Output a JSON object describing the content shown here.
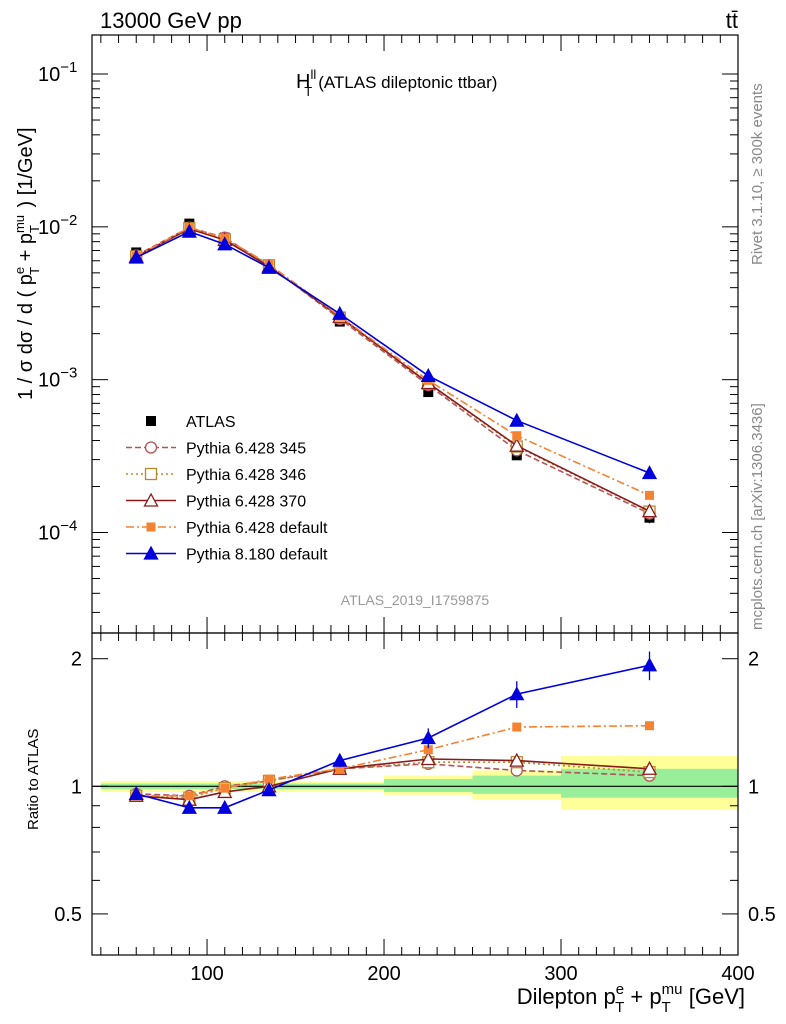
{
  "header": {
    "energy_label": "13000 GeV pp",
    "process_label": "tt̄"
  },
  "side_labels": {
    "rivet": "Rivet 3.1.10, ≥ 300k events",
    "mcplots": "mcplots.cern.ch [arXiv:1306.3436]"
  },
  "analysis_id": "ATLAS_2019_I1759875",
  "chart_data": [
    {
      "type": "line",
      "panel": "main",
      "title_main": "H",
      "title_sup": "ll",
      "title_sub": "T",
      "title_rest": "(ATLAS dileptonic ttbar)",
      "ylabel": "1 / σ  dσ / d ( p^e_T + p^mu_T ) [1/GeV]",
      "yscale": "log",
      "ylim": [
        2.2e-05,
        0.18
      ],
      "xlim": [
        35,
        400
      ],
      "yticks": [
        {
          "value": 0.1,
          "base": "10",
          "exp": "−1"
        },
        {
          "value": 0.01,
          "base": "10",
          "exp": "−2"
        },
        {
          "value": 0.001,
          "base": "10",
          "exp": "−3"
        },
        {
          "value": 0.0001,
          "base": "10",
          "exp": "−4"
        }
      ],
      "legend_position": "lower-left",
      "x": [
        60,
        90,
        110,
        135,
        175,
        225,
        275,
        350
      ],
      "series": [
        {
          "name": "ATLAS",
          "style": "data",
          "color": "#000000",
          "values": [
            0.0068,
            0.0105,
            0.0085,
            0.0055,
            0.0024,
            0.00083,
            0.00032,
            0.000125
          ],
          "errors": [
            0.0002,
            0.0003,
            0.0002,
            0.00015,
            7e-05,
            3e-05,
            2e-05,
            1e-05
          ]
        },
        {
          "name": "Pythia 6.428 345",
          "style": "dashed",
          "marker": "circle-open",
          "color": "#b5525a",
          "values": [
            0.0065,
            0.0099,
            0.0085,
            0.0056,
            0.0025,
            0.00092,
            0.000345,
            0.000133
          ]
        },
        {
          "name": "Pythia 6.428 346",
          "style": "dotted",
          "marker": "square-open",
          "color": "#b8892e",
          "values": [
            0.0064,
            0.0098,
            0.0083,
            0.0056,
            0.00255,
            0.00094,
            0.000365,
            0.000137
          ]
        },
        {
          "name": "Pythia 6.428 370",
          "style": "solid",
          "marker": "triangle-open",
          "color": "#8b1a1a",
          "values": [
            0.0064,
            0.0097,
            0.0082,
            0.0055,
            0.00258,
            0.00095,
            0.00037,
            0.000138
          ]
        },
        {
          "name": "Pythia 6.428 default",
          "style": "dashdot",
          "marker": "square-filled",
          "color": "#f58231",
          "values": [
            0.0064,
            0.0099,
            0.0084,
            0.0057,
            0.0026,
            0.00099,
            0.00043,
            0.000175
          ]
        },
        {
          "name": "Pythia 8.180 default",
          "style": "solid",
          "marker": "triangle-filled",
          "color": "#0000dd",
          "values": [
            0.0063,
            0.0093,
            0.0077,
            0.0054,
            0.0027,
            0.00106,
            0.00054,
            0.000245
          ],
          "errors": [
            0.0002,
            0.0003,
            0.0002,
            0.00015,
            0.0001,
            4e-05,
            4e-05,
            2e-05
          ]
        }
      ]
    },
    {
      "type": "line",
      "panel": "ratio",
      "ylabel": "Ratio to ATLAS",
      "xlabel_main": "Dilepton p",
      "xlabel_rest": "[GeV]",
      "yscale": "log",
      "ylim": [
        0.4,
        2.3
      ],
      "xlim": [
        35,
        400
      ],
      "xticks": [
        "100",
        "200",
        "300",
        "400"
      ],
      "yticks": [
        "0.5",
        "1",
        "2"
      ],
      "bands": [
        {
          "x0": 40,
          "x1": 80,
          "green": [
            0.985,
            1.015
          ],
          "yellow": [
            0.97,
            1.03
          ]
        },
        {
          "x0": 80,
          "x1": 100,
          "green": [
            0.985,
            1.015
          ],
          "yellow": [
            0.97,
            1.03
          ]
        },
        {
          "x0": 100,
          "x1": 120,
          "green": [
            0.985,
            1.015
          ],
          "yellow": [
            0.97,
            1.03
          ]
        },
        {
          "x0": 120,
          "x1": 150,
          "green": [
            0.985,
            1.015
          ],
          "yellow": [
            0.97,
            1.03
          ]
        },
        {
          "x0": 150,
          "x1": 200,
          "green": [
            0.985,
            1.015
          ],
          "yellow": [
            0.975,
            1.025
          ]
        },
        {
          "x0": 200,
          "x1": 250,
          "green": [
            0.97,
            1.04
          ],
          "yellow": [
            0.955,
            1.06
          ]
        },
        {
          "x0": 250,
          "x1": 300,
          "green": [
            0.96,
            1.06
          ],
          "yellow": [
            0.93,
            1.09
          ]
        },
        {
          "x0": 300,
          "x1": 400,
          "green": [
            0.94,
            1.1
          ],
          "yellow": [
            0.88,
            1.18
          ]
        }
      ],
      "x": [
        60,
        90,
        110,
        135,
        175,
        225,
        275,
        350
      ],
      "series": [
        {
          "name": "Pythia 6.428 345",
          "style": "dashed",
          "marker": "circle-open",
          "color": "#b5525a",
          "values": [
            0.96,
            0.95,
            1.0,
            1.03,
            1.1,
            1.13,
            1.09,
            1.06
          ]
        },
        {
          "name": "Pythia 6.428 346",
          "style": "dotted",
          "marker": "square-open",
          "color": "#b8892e",
          "values": [
            0.95,
            0.94,
            0.99,
            1.03,
            1.1,
            1.14,
            1.14,
            1.08
          ]
        },
        {
          "name": "Pythia 6.428 370",
          "style": "solid",
          "marker": "triangle-open",
          "color": "#8b1a1a",
          "values": [
            0.95,
            0.93,
            0.97,
            1.0,
            1.1,
            1.16,
            1.15,
            1.1
          ]
        },
        {
          "name": "Pythia 6.428 default",
          "style": "dashdot",
          "marker": "square-filled",
          "color": "#f58231",
          "values": [
            0.95,
            0.95,
            0.99,
            1.04,
            1.1,
            1.22,
            1.38,
            1.39
          ]
        },
        {
          "name": "Pythia 8.180 default",
          "style": "solid",
          "marker": "triangle-filled",
          "color": "#0000dd",
          "values": [
            0.96,
            0.89,
            0.89,
            0.98,
            1.15,
            1.3,
            1.65,
            1.93
          ],
          "errors": [
            0.02,
            0.02,
            0.02,
            0.02,
            0.04,
            0.07,
            0.12,
            0.15
          ]
        }
      ]
    }
  ]
}
